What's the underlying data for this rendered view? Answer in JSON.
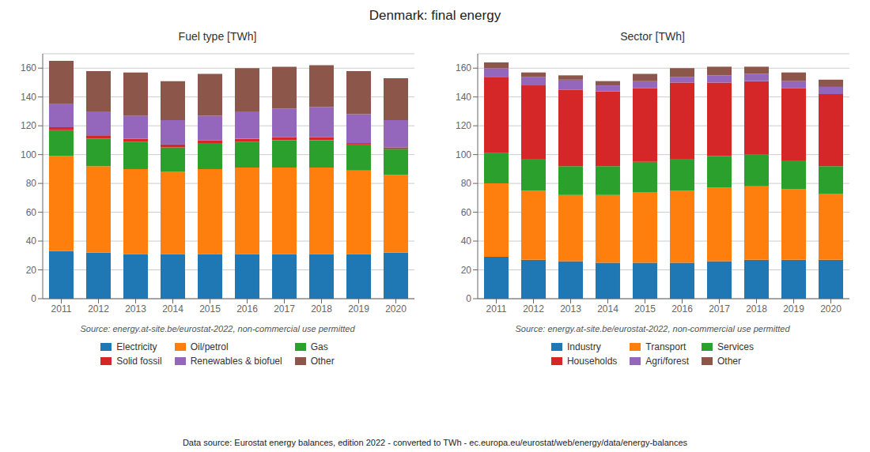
{
  "title": "Denmark: final energy",
  "annotations": [
    "Data source: Eurostat energy balances, edition 2022 - converted to TWh - ec.europa.eu/eurostat/web/energy/data/energy-balances"
  ],
  "chart_data": [
    {
      "type": "bar",
      "title": "Fuel type [TWh]",
      "annotations": [
        "Source: energy.at-site.be/eurostat-2022, non-commercial use permitted"
      ],
      "categories": [
        "2011",
        "2012",
        "2013",
        "2014",
        "2015",
        "2016",
        "2017",
        "2018",
        "2019",
        "2020"
      ],
      "series": [
        {
          "name": "Electricity",
          "color": "#1f77b4",
          "values": [
            33,
            32,
            31,
            31,
            31,
            31,
            31,
            31,
            31,
            32
          ]
        },
        {
          "name": "Oil/petrol",
          "color": "#ff7f0e",
          "values": [
            66,
            60,
            59,
            57,
            59,
            60,
            60,
            60,
            58,
            54
          ]
        },
        {
          "name": "Gas",
          "color": "#2ca02c",
          "values": [
            18,
            19,
            19,
            17,
            18,
            18,
            19,
            19,
            18,
            18
          ]
        },
        {
          "name": "Solid fossil",
          "color": "#d62728",
          "values": [
            2,
            2,
            2,
            2,
            2,
            2,
            2,
            2,
            1,
            1
          ]
        },
        {
          "name": "Renewables & biofuel",
          "color": "#9467bd",
          "values": [
            16,
            17,
            16,
            17,
            17,
            19,
            20,
            21,
            20,
            19
          ]
        },
        {
          "name": "Other",
          "color": "#8c564b",
          "values": [
            30,
            28,
            30,
            27,
            29,
            30,
            29,
            29,
            30,
            29
          ]
        }
      ],
      "ylim": [
        0,
        170
      ],
      "yticks": [
        0,
        20,
        40,
        60,
        80,
        100,
        120,
        140,
        160
      ],
      "grid": true,
      "stacked": true,
      "legend": "bottom"
    },
    {
      "type": "bar",
      "title": "Sector [TWh]",
      "annotations": [
        "Source: energy.at-site.be/eurostat-2022, non-commercial use permitted"
      ],
      "categories": [
        "2011",
        "2012",
        "2013",
        "2014",
        "2015",
        "2016",
        "2017",
        "2018",
        "2019",
        "2020"
      ],
      "series": [
        {
          "name": "Industry",
          "color": "#1f77b4",
          "values": [
            29,
            27,
            26,
            25,
            25,
            25,
            26,
            27,
            27,
            27
          ]
        },
        {
          "name": "Transport",
          "color": "#ff7f0e",
          "values": [
            51,
            48,
            46,
            47,
            49,
            50,
            51,
            51,
            49,
            46
          ]
        },
        {
          "name": "Services",
          "color": "#2ca02c",
          "values": [
            21,
            22,
            20,
            20,
            21,
            22,
            22,
            22,
            20,
            19
          ]
        },
        {
          "name": "Households",
          "color": "#d62728",
          "values": [
            53,
            51,
            53,
            52,
            51,
            53,
            51,
            51,
            50,
            50
          ]
        },
        {
          "name": "Agri/forest",
          "color": "#9467bd",
          "values": [
            6,
            6,
            7,
            4,
            5,
            4,
            5,
            5,
            5,
            5
          ]
        },
        {
          "name": "Other",
          "color": "#8c564b",
          "values": [
            4,
            3,
            3,
            3,
            5,
            6,
            6,
            5,
            6,
            5
          ]
        }
      ],
      "ylim": [
        0,
        170
      ],
      "yticks": [
        0,
        20,
        40,
        60,
        80,
        100,
        120,
        140,
        160
      ],
      "grid": true,
      "stacked": true,
      "legend": "bottom"
    }
  ]
}
